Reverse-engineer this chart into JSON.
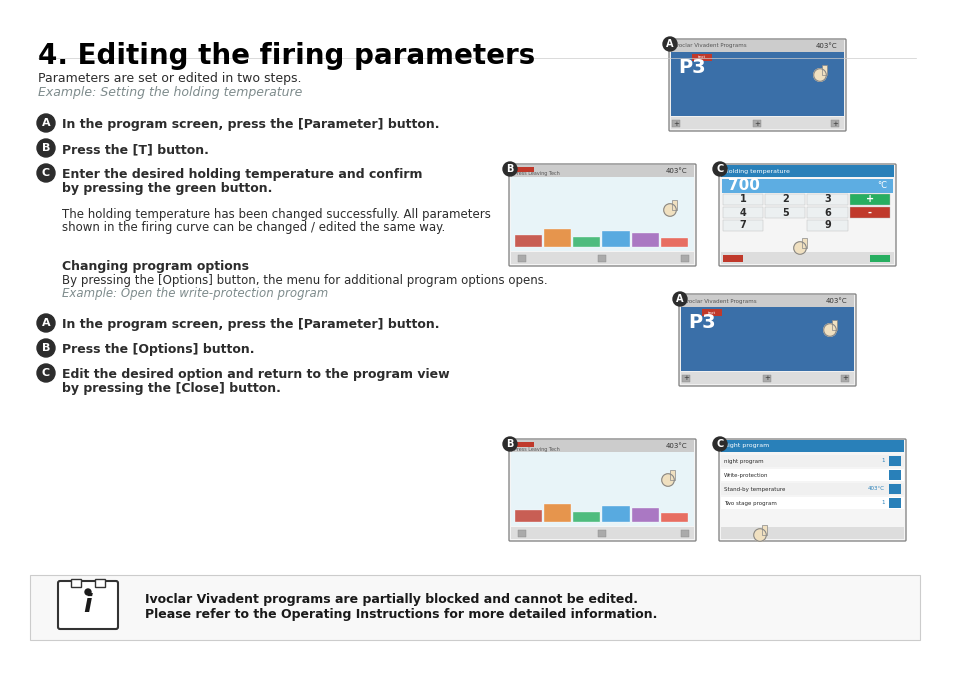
{
  "title": "4. Editing the firing parameters",
  "bg_color": "#ffffff",
  "title_color": "#000000",
  "title_fontsize": 20,
  "body_fontsize": 9,
  "bold_fontsize": 9,
  "gray_text_color": "#7f8c8d",
  "dark_text_color": "#2c2c2c",
  "section1": {
    "intro_line1": "Parameters are set or edited in two steps.",
    "intro_line2": "Example: Setting the holding temperature",
    "stepA": "In the program screen, press the [Parameter] button.",
    "stepB": "Press the [T] button.",
    "stepC_line1": "Enter the desired holding temperature and confirm",
    "stepC_line2": "by pressing the green button.",
    "note_line1": "The holding temperature has been changed successfully. All parameters",
    "note_line2": "shown in the firing curve can be changed / edited the same way."
  },
  "section2": {
    "header": "Changing program options",
    "desc_line1": "By pressing the [Options] button, the menu for additional program options opens.",
    "desc_line2": "Example: Open the write-protection program",
    "stepA": "In the program screen, press the [Parameter] button.",
    "stepB": "Press the [Options] button.",
    "stepC_line1": "Edit the desired option and return to the program view",
    "stepC_line2": "by pressing the [Close] button."
  },
  "footer_line1": "Ivoclar Vivadent programs are partially blocked and cannot be edited.",
  "footer_line2": "Please refer to the Operating Instructions for more detailed information."
}
